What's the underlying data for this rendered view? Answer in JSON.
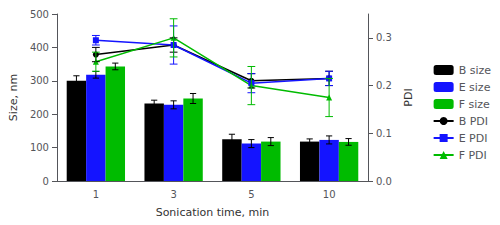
{
  "chart_data": {
    "type": "bar",
    "categories": [
      "1",
      "3",
      "5",
      "10"
    ],
    "xlabel": "Sonication time, min",
    "ylabel": "Size, nm",
    "y2label": "PDI",
    "ylim": [
      0,
      500
    ],
    "yticks": [
      0,
      100,
      200,
      300,
      400,
      500
    ],
    "y2lim": [
      0.0,
      0.35
    ],
    "y2ticks": [
      {
        "value": 0,
        "label": "0.0"
      },
      0.1,
      0.2,
      0.3
    ],
    "grid": false,
    "legend": "right",
    "series": [
      {
        "name": "B size",
        "type": "bar",
        "color": "black",
        "values": [
          300,
          232,
          125,
          118
        ],
        "errors": [
          15,
          10,
          15,
          8
        ]
      },
      {
        "name": "E size",
        "type": "bar",
        "color": "#1414ff",
        "values": [
          318,
          228,
          112,
          123
        ],
        "errors": [
          10,
          12,
          12,
          12
        ]
      },
      {
        "name": "F size",
        "type": "bar",
        "color": "#00bb00",
        "values": [
          343,
          247,
          118,
          117
        ],
        "errors": [
          10,
          15,
          12,
          10
        ]
      },
      {
        "name": "B PDI",
        "type": "line",
        "axis": "y2",
        "color": "black",
        "marker": "circle",
        "line_style": "solid",
        "values": [
          0.265,
          0.285,
          0.21,
          0.215
        ],
        "errors": [
          0.015,
          0.015,
          0.015,
          0.015
        ]
      },
      {
        "name": "E PDI",
        "type": "line",
        "axis": "y2",
        "color": "#1414ff",
        "marker": "square",
        "line_style": "solid",
        "values": [
          0.295,
          0.285,
          0.205,
          0.215
        ],
        "errors": [
          0.01,
          0.04,
          0.02,
          0.015
        ]
      },
      {
        "name": "F PDI",
        "type": "line",
        "axis": "y2",
        "color": "#00bb00",
        "marker": "triangle",
        "line_style": "solid",
        "values": [
          0.25,
          0.3,
          0.2,
          0.175
        ],
        "errors": [
          0.02,
          0.04,
          0.04,
          0.04
        ]
      }
    ]
  }
}
